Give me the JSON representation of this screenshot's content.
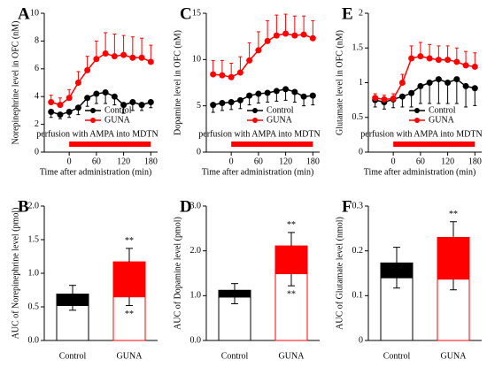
{
  "chart_data": [
    {
      "type": "line",
      "label": "A",
      "ylabel": "Norepinephrine level in OFC (nM)",
      "xlabel": "Time after administration (min)",
      "annotation": "perfusion with AMPA into MDTN",
      "perfusion": [
        0,
        180
      ],
      "perfusion_color": "#ff0000",
      "x": [
        -40,
        -20,
        0,
        20,
        40,
        60,
        80,
        100,
        120,
        140,
        160,
        180
      ],
      "xlim": [
        -55,
        195
      ],
      "xticks": [
        0,
        60,
        120,
        180
      ],
      "ylim": [
        0,
        10
      ],
      "yticks": [
        0,
        2,
        4,
        6,
        8,
        10
      ],
      "legend": "lower right",
      "series": [
        {
          "name": "Control",
          "color": "#000000",
          "error_direction": "down",
          "values": [
            2.9,
            2.7,
            2.9,
            3.2,
            3.9,
            4.2,
            4.3,
            4.0,
            3.4,
            3.6,
            3.4,
            3.6
          ],
          "errors": [
            0.4,
            0.3,
            0.4,
            0.5,
            0.6,
            0.7,
            0.8,
            0.6,
            0.6,
            0.6,
            0.4,
            0.4
          ]
        },
        {
          "name": "GUNA",
          "color": "#ff0000",
          "error_direction": "up",
          "values": [
            3.6,
            3.4,
            3.9,
            5.0,
            5.9,
            6.7,
            7.1,
            6.9,
            7.0,
            6.8,
            6.8,
            6.5
          ],
          "errors": [
            0.5,
            0.5,
            0.6,
            0.8,
            1.0,
            1.3,
            1.5,
            1.6,
            1.4,
            1.5,
            1.4,
            1.2
          ]
        }
      ]
    },
    {
      "type": "line",
      "label": "C",
      "ylabel": "Dopamine level in OFC (nM)",
      "xlabel": "Time after administration (min)",
      "annotation": "perfusion with AMPA into MDTN",
      "perfusion": [
        0,
        180
      ],
      "perfusion_color": "#ff0000",
      "x": [
        -40,
        -20,
        0,
        20,
        40,
        60,
        80,
        100,
        120,
        140,
        160,
        180
      ],
      "xlim": [
        -55,
        195
      ],
      "xticks": [
        0,
        60,
        120,
        180
      ],
      "ylim": [
        0,
        15
      ],
      "yticks": [
        0,
        5,
        10,
        15
      ],
      "legend": "lower right",
      "series": [
        {
          "name": "Control",
          "color": "#000000",
          "error_direction": "down",
          "values": [
            5.1,
            5.3,
            5.4,
            5.6,
            6.1,
            6.3,
            6.4,
            6.6,
            6.8,
            6.5,
            6.0,
            6.1
          ],
          "errors": [
            0.8,
            0.8,
            0.8,
            0.9,
            1.0,
            1.0,
            1.0,
            1.1,
            1.2,
            1.1,
            1.0,
            1.0
          ]
        },
        {
          "name": "GUNA",
          "color": "#ff0000",
          "error_direction": "up",
          "values": [
            8.4,
            8.3,
            8.1,
            8.6,
            9.9,
            11.0,
            12.0,
            12.6,
            12.8,
            12.6,
            12.7,
            12.3
          ],
          "errors": [
            1.5,
            1.6,
            1.5,
            1.7,
            1.9,
            2.0,
            2.2,
            2.2,
            2.1,
            2.1,
            2.0,
            1.9
          ]
        }
      ]
    },
    {
      "type": "line",
      "label": "E",
      "ylabel": "Glutamate level in OFC (nM)",
      "xlabel": "Time after administration (min)",
      "annotation": "perfusion with AMPA into MDTN",
      "perfusion": [
        0,
        180
      ],
      "perfusion_color": "#ff0000",
      "x": [
        -40,
        -20,
        0,
        20,
        40,
        60,
        80,
        100,
        120,
        140,
        160,
        180
      ],
      "xlim": [
        -55,
        195
      ],
      "xticks": [
        0,
        60,
        120,
        180
      ],
      "ylim": [
        0,
        2
      ],
      "yticks": [
        0,
        0.5,
        1,
        1.5,
        2
      ],
      "legend": "lower right",
      "series": [
        {
          "name": "Control",
          "color": "#000000",
          "error_direction": "down",
          "values": [
            0.75,
            0.72,
            0.76,
            0.8,
            0.85,
            0.95,
            1.0,
            1.05,
            1.0,
            1.05,
            0.95,
            0.92
          ],
          "errors": [
            0.1,
            0.1,
            0.12,
            0.15,
            0.2,
            0.25,
            0.3,
            0.35,
            0.3,
            0.35,
            0.3,
            0.25
          ]
        },
        {
          "name": "GUNA",
          "color": "#ff0000",
          "error_direction": "up",
          "values": [
            0.78,
            0.76,
            0.77,
            1.0,
            1.35,
            1.38,
            1.35,
            1.33,
            1.33,
            1.3,
            1.25,
            1.23
          ],
          "errors": [
            0.06,
            0.06,
            0.07,
            0.12,
            0.18,
            0.2,
            0.2,
            0.2,
            0.2,
            0.2,
            0.2,
            0.2
          ]
        }
      ]
    },
    {
      "type": "bar",
      "label": "B",
      "ylabel": "AUC of Norepinephrine level (pmol)",
      "categories": [
        "Control",
        "GUNA"
      ],
      "colors": [
        "#000000",
        "#ff0000"
      ],
      "baseline": [
        0.52,
        0.65
      ],
      "baseline_error": [
        0.07,
        0.13
      ],
      "increase": [
        0.17,
        0.52
      ],
      "increase_error": [
        0.13,
        0.2
      ],
      "marks_top": [
        null,
        "**"
      ],
      "marks_bottom": [
        null,
        "**"
      ],
      "ylim": [
        0,
        2
      ],
      "yticks": [
        {
          "value": 0,
          "label": "0.0"
        },
        0.5,
        {
          "value": 1,
          "label": "1.0"
        },
        1.5,
        {
          "value": 2,
          "label": "2.0"
        }
      ]
    },
    {
      "type": "bar",
      "label": "D",
      "ylabel": "AUC of Dopamine level (pmol)",
      "categories": [
        "Control",
        "GUNA"
      ],
      "colors": [
        "#000000",
        "#ff0000"
      ],
      "baseline": [
        0.97,
        1.49
      ],
      "baseline_error": [
        0.15,
        0.27
      ],
      "increase": [
        0.15,
        0.62
      ],
      "increase_error": [
        0.15,
        0.3
      ],
      "marks_top": [
        null,
        "**"
      ],
      "marks_bottom": [
        null,
        "**"
      ],
      "ylim": [
        0,
        3
      ],
      "yticks": [
        {
          "value": 0,
          "label": "0.0"
        },
        {
          "value": 1,
          "label": "1.0"
        },
        {
          "value": 2,
          "label": "2.0"
        },
        {
          "value": 3,
          "label": "3.0"
        }
      ]
    },
    {
      "type": "bar",
      "label": "F",
      "ylabel": "AUC of Glutamate level (nmol)",
      "categories": [
        "Control",
        "GUNA"
      ],
      "colors": [
        "#000000",
        "#ff0000"
      ],
      "baseline": [
        0.14,
        0.137
      ],
      "baseline_error": [
        0.023,
        0.024
      ],
      "increase": [
        0.033,
        0.093
      ],
      "increase_error": [
        0.035,
        0.035
      ],
      "marks_top": [
        null,
        "**"
      ],
      "marks_bottom": [
        null,
        null
      ],
      "ylim": [
        0,
        0.3
      ],
      "yticks": [
        0,
        0.1,
        0.2,
        0.3
      ]
    }
  ]
}
